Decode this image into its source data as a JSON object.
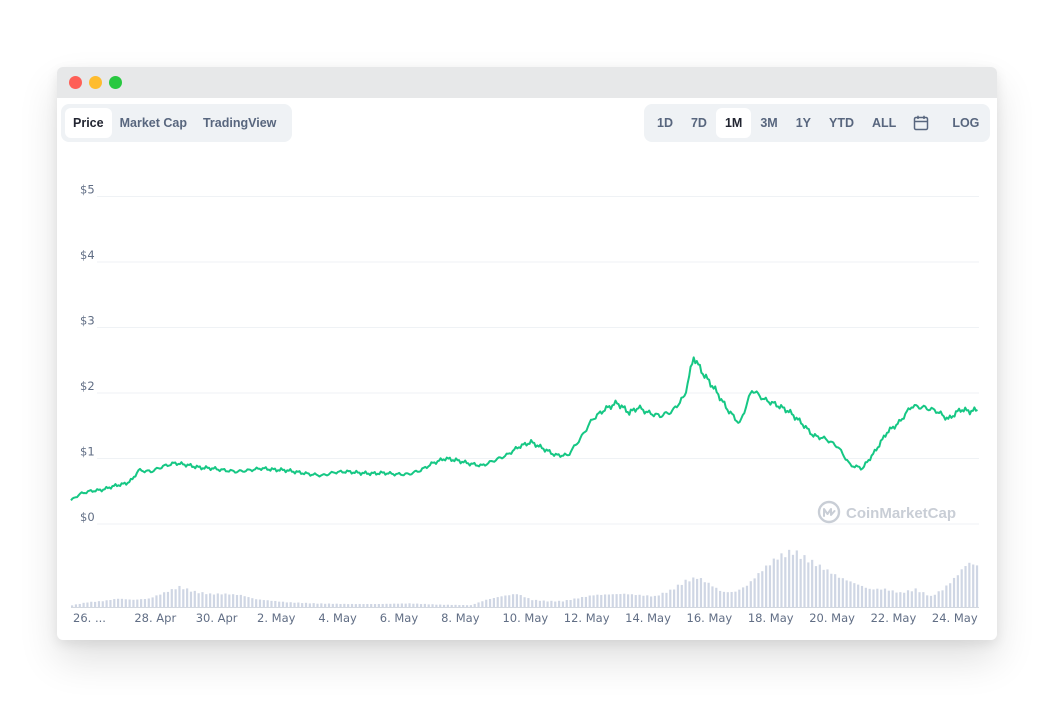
{
  "window": {
    "traffic_lights": [
      "close",
      "minimize",
      "zoom"
    ]
  },
  "tabs": {
    "items": [
      {
        "label": "Price",
        "active": true
      },
      {
        "label": "Market Cap",
        "active": false
      },
      {
        "label": "TradingView",
        "active": false
      }
    ]
  },
  "ranges": {
    "items": [
      {
        "label": "1D",
        "active": false
      },
      {
        "label": "7D",
        "active": false
      },
      {
        "label": "1M",
        "active": true
      },
      {
        "label": "3M",
        "active": false
      },
      {
        "label": "1Y",
        "active": false
      },
      {
        "label": "YTD",
        "active": false
      },
      {
        "label": "ALL",
        "active": false
      }
    ],
    "calendar_icon": "calendar-icon",
    "log_label": "LOG"
  },
  "watermark": {
    "text": "CoinMarketCap",
    "icon": "coinmarketcap-logo"
  },
  "colors": {
    "line": "#16c784",
    "volume": "#cfd6e4",
    "grid": "#eff2f5",
    "accent": "#3861fb"
  },
  "chart_data": {
    "type": "line",
    "y_ticks": [
      "$0",
      "$1",
      "$2",
      "$3",
      "$4",
      "$5"
    ],
    "ylim": [
      0,
      5
    ],
    "x_ticks": [
      "26. ...",
      "28. Apr",
      "30. Apr",
      "2. May",
      "4. May",
      "6. May",
      "8. May",
      "10. May",
      "12. May",
      "14. May",
      "16. May",
      "18. May",
      "20. May",
      "22. May",
      "24. May"
    ],
    "x_range_days": [
      0,
      29.6
    ],
    "grid": true,
    "series": [
      {
        "type": "line",
        "x": [
          0,
          0.3,
          0.6,
          1.0,
          1.4,
          1.8,
          2.0,
          2.2,
          2.6,
          3.0,
          3.4,
          3.8,
          4.2,
          4.6,
          5.0,
          5.4,
          5.8,
          6.2,
          6.6,
          7.0,
          7.4,
          7.8,
          8.2,
          8.6,
          9.0,
          9.4,
          9.8,
          10.2,
          10.6,
          11.0,
          11.4,
          11.8,
          12.2,
          12.6,
          13.0,
          13.4,
          13.8,
          14.2,
          14.6,
          15.0,
          15.4,
          15.8,
          16.2,
          16.6,
          17.0,
          17.4,
          17.8,
          18.2,
          18.5,
          18.8,
          19.2,
          19.6,
          20.0,
          20.3,
          20.6,
          21.0,
          21.4,
          21.8,
          22.2,
          22.6,
          23.0,
          23.4,
          23.8,
          24.2,
          24.6,
          25.0,
          25.4,
          25.8,
          26.2,
          26.6,
          27.0,
          27.4,
          27.8,
          28.2,
          28.6,
          29.0,
          29.3,
          29.6
        ],
        "y": [
          0.36,
          0.46,
          0.5,
          0.52,
          0.58,
          0.62,
          0.68,
          0.82,
          0.8,
          0.88,
          0.93,
          0.9,
          0.86,
          0.85,
          0.82,
          0.8,
          0.82,
          0.85,
          0.83,
          0.82,
          0.79,
          0.76,
          0.74,
          0.79,
          0.8,
          0.78,
          0.77,
          0.78,
          0.76,
          0.76,
          0.82,
          0.93,
          1.0,
          0.97,
          0.92,
          0.89,
          0.97,
          1.05,
          1.18,
          1.25,
          1.15,
          1.05,
          1.05,
          1.3,
          1.6,
          1.75,
          1.85,
          1.7,
          1.78,
          1.7,
          1.65,
          1.72,
          1.95,
          2.55,
          2.3,
          2.05,
          1.75,
          1.53,
          2.05,
          1.9,
          1.82,
          1.72,
          1.55,
          1.35,
          1.3,
          1.18,
          0.9,
          0.85,
          1.1,
          1.4,
          1.55,
          1.8,
          1.78,
          1.73,
          1.6,
          1.75,
          1.72,
          1.75
        ]
      },
      {
        "type": "volume",
        "x": [
          0,
          0.5,
          1.0,
          1.5,
          2.0,
          2.5,
          3.0,
          3.5,
          4.0,
          4.5,
          5.0,
          5.5,
          6.0,
          7.0,
          8.0,
          9.0,
          10.0,
          11.0,
          12.0,
          13.0,
          13.5,
          14.0,
          14.5,
          15.0,
          15.5,
          16.0,
          17.0,
          18.0,
          19.0,
          19.5,
          20.0,
          20.4,
          20.8,
          21.2,
          21.6,
          22.0,
          22.5,
          23.0,
          23.5,
          24.0,
          25.0,
          26.0,
          26.5,
          27.0,
          27.5,
          28.0,
          28.4,
          28.8,
          29.2,
          29.6
        ],
        "y": [
          0.03,
          0.08,
          0.1,
          0.14,
          0.12,
          0.14,
          0.24,
          0.34,
          0.26,
          0.22,
          0.22,
          0.2,
          0.13,
          0.08,
          0.06,
          0.05,
          0.05,
          0.06,
          0.04,
          0.03,
          0.12,
          0.18,
          0.22,
          0.12,
          0.1,
          0.1,
          0.2,
          0.22,
          0.18,
          0.28,
          0.44,
          0.5,
          0.38,
          0.25,
          0.25,
          0.36,
          0.62,
          0.84,
          0.95,
          0.8,
          0.5,
          0.3,
          0.3,
          0.24,
          0.3,
          0.18,
          0.3,
          0.5,
          0.74,
          0.68
        ]
      }
    ]
  }
}
